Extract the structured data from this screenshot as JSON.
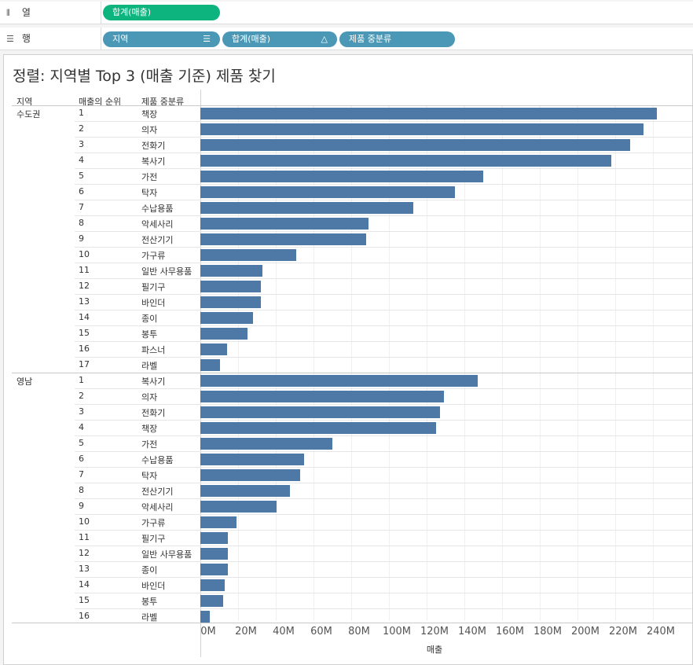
{
  "shelves": {
    "columns": {
      "icon": "columns-icon",
      "label": "열",
      "pills": [
        {
          "label": "합계(매출)",
          "color": "#0db47e"
        }
      ]
    },
    "rows": {
      "icon": "rows-icon",
      "label": "행",
      "pills": [
        {
          "label": "지역",
          "icon": "sort-descending-icon"
        },
        {
          "label": "합계(매출)",
          "icon": "delta-icon"
        },
        {
          "label": "제품 중분류"
        }
      ]
    }
  },
  "view": {
    "title": "정렬: 지역별 Top 3 (매출 기준) 제품 찾기",
    "headers": {
      "region": "지역",
      "rank": "매출의 순위",
      "subcat": "제품 중분류"
    }
  },
  "chart_data": {
    "type": "bar",
    "orientation": "horizontal",
    "xlabel": "매출",
    "xlim": [
      0,
      250
    ],
    "xunit": "M",
    "xticks": [
      "0M",
      "20M",
      "40M",
      "60M",
      "80M",
      "100M",
      "120M",
      "140M",
      "160M",
      "180M",
      "200M",
      "220M",
      "240M"
    ],
    "bar_color": "#4e79a7",
    "groups": [
      {
        "region": "수도권",
        "rows": [
          {
            "rank": "1",
            "subcat": "책장",
            "value": 242
          },
          {
            "rank": "2",
            "subcat": "의자",
            "value": 235
          },
          {
            "rank": "3",
            "subcat": "전화기",
            "value": 228
          },
          {
            "rank": "4",
            "subcat": "복사기",
            "value": 218
          },
          {
            "rank": "5",
            "subcat": "가전",
            "value": 150
          },
          {
            "rank": "6",
            "subcat": "탁자",
            "value": 135
          },
          {
            "rank": "7",
            "subcat": "수납용품",
            "value": 113
          },
          {
            "rank": "8",
            "subcat": "악세사리",
            "value": 89
          },
          {
            "rank": "9",
            "subcat": "전산기기",
            "value": 88
          },
          {
            "rank": "10",
            "subcat": "가구류",
            "value": 51
          },
          {
            "rank": "11",
            "subcat": "일반 사무용품",
            "value": 33
          },
          {
            "rank": "12",
            "subcat": "필기구",
            "value": 32
          },
          {
            "rank": "13",
            "subcat": "바인더",
            "value": 32
          },
          {
            "rank": "14",
            "subcat": "종이",
            "value": 28
          },
          {
            "rank": "15",
            "subcat": "봉투",
            "value": 25
          },
          {
            "rank": "16",
            "subcat": "파스너",
            "value": 14
          },
          {
            "rank": "17",
            "subcat": "라벨",
            "value": 10.5
          }
        ]
      },
      {
        "region": "영남",
        "rows": [
          {
            "rank": "1",
            "subcat": "복사기",
            "value": 147
          },
          {
            "rank": "2",
            "subcat": "의자",
            "value": 129
          },
          {
            "rank": "3",
            "subcat": "전화기",
            "value": 127
          },
          {
            "rank": "4",
            "subcat": "책장",
            "value": 125
          },
          {
            "rank": "5",
            "subcat": "가전",
            "value": 70
          },
          {
            "rank": "6",
            "subcat": "수납용품",
            "value": 55
          },
          {
            "rank": "7",
            "subcat": "탁자",
            "value": 53
          },
          {
            "rank": "8",
            "subcat": "전산기기",
            "value": 47.5
          },
          {
            "rank": "9",
            "subcat": "악세사리",
            "value": 40.5
          },
          {
            "rank": "10",
            "subcat": "가구류",
            "value": 19
          },
          {
            "rank": "11",
            "subcat": "필기구",
            "value": 14.5
          },
          {
            "rank": "12",
            "subcat": "일반 사무용품",
            "value": 14.5
          },
          {
            "rank": "13",
            "subcat": "종이",
            "value": 14.5
          },
          {
            "rank": "14",
            "subcat": "바인더",
            "value": 13
          },
          {
            "rank": "15",
            "subcat": "봉투",
            "value": 12
          },
          {
            "rank": "16",
            "subcat": "라벨",
            "value": 5
          }
        ]
      }
    ]
  }
}
